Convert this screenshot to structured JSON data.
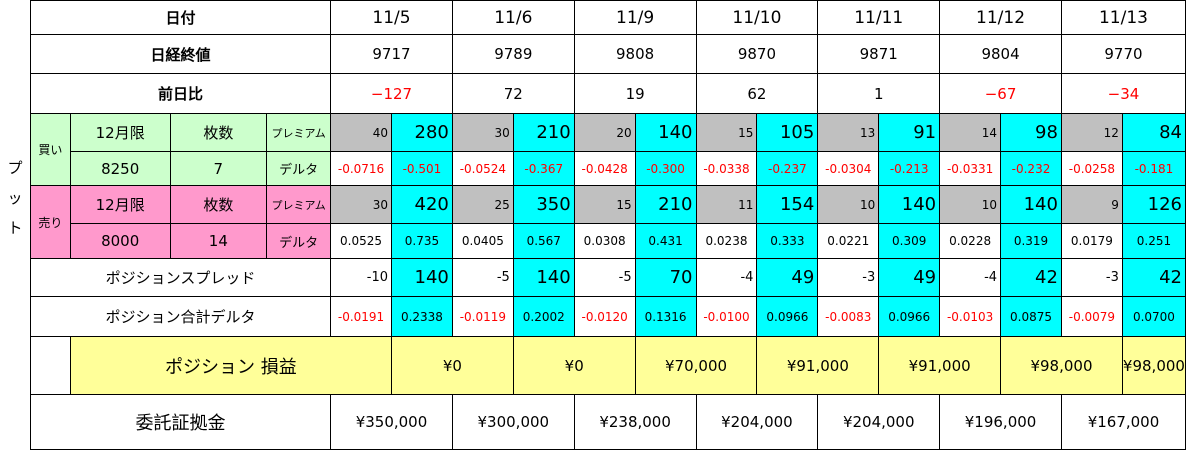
{
  "labels": {
    "date": "日付",
    "close": "日経終値",
    "change": "前日比",
    "side_put": "プット",
    "buy": "買い",
    "sell": "売り",
    "month": "12月限",
    "qty": "枚数",
    "premium": "プレミアム",
    "delta": "デルタ",
    "spread": "ポジションスプレッド",
    "total_delta": "ポジション合計デルタ",
    "pnl": "ポジション 損益",
    "margin": "委託証拠金"
  },
  "buy": {
    "strike": "8250",
    "qty": "7"
  },
  "sell": {
    "strike": "8000",
    "qty": "14"
  },
  "days": [
    {
      "date": "11/5",
      "close": "9717",
      "change": "−127",
      "change_neg": true,
      "buy_prem": "40",
      "buy_prem_total": "280",
      "buy_delta": "-0.0716",
      "buy_delta_total": "-0.501",
      "sell_prem": "30",
      "sell_prem_total": "420",
      "sell_delta": "0.0525",
      "sell_delta_total": "0.735",
      "spread": "-10",
      "spread_total": "140",
      "pos_delta": "-0.0191",
      "pos_delta_total": "0.2338",
      "pnl": "¥0",
      "margin": "¥350,000"
    },
    {
      "date": "11/6",
      "close": "9789",
      "change": "72",
      "change_neg": false,
      "buy_prem": "30",
      "buy_prem_total": "210",
      "buy_delta": "-0.0524",
      "buy_delta_total": "-0.367",
      "sell_prem": "25",
      "sell_prem_total": "350",
      "sell_delta": "0.0405",
      "sell_delta_total": "0.567",
      "spread": "-5",
      "spread_total": "140",
      "pos_delta": "-0.0119",
      "pos_delta_total": "0.2002",
      "pnl": "¥0",
      "margin": "¥300,000"
    },
    {
      "date": "11/9",
      "close": "9808",
      "change": "19",
      "change_neg": false,
      "buy_prem": "20",
      "buy_prem_total": "140",
      "buy_delta": "-0.0428",
      "buy_delta_total": "-0.300",
      "sell_prem": "15",
      "sell_prem_total": "210",
      "sell_delta": "0.0308",
      "sell_delta_total": "0.431",
      "spread": "-5",
      "spread_total": "70",
      "pos_delta": "-0.0120",
      "pos_delta_total": "0.1316",
      "pnl": "¥70,000",
      "margin": "¥238,000"
    },
    {
      "date": "11/10",
      "close": "9870",
      "change": "62",
      "change_neg": false,
      "buy_prem": "15",
      "buy_prem_total": "105",
      "buy_delta": "-0.0338",
      "buy_delta_total": "-0.237",
      "sell_prem": "11",
      "sell_prem_total": "154",
      "sell_delta": "0.0238",
      "sell_delta_total": "0.333",
      "spread": "-4",
      "spread_total": "49",
      "pos_delta": "-0.0100",
      "pos_delta_total": "0.0966",
      "pnl": "¥91,000",
      "margin": "¥204,000"
    },
    {
      "date": "11/11",
      "close": "9871",
      "change": "1",
      "change_neg": false,
      "buy_prem": "13",
      "buy_prem_total": "91",
      "buy_delta": "-0.0304",
      "buy_delta_total": "-0.213",
      "sell_prem": "10",
      "sell_prem_total": "140",
      "sell_delta": "0.0221",
      "sell_delta_total": "0.309",
      "spread": "-3",
      "spread_total": "49",
      "pos_delta": "-0.0083",
      "pos_delta_total": "0.0966",
      "pnl": "¥91,000",
      "margin": "¥204,000"
    },
    {
      "date": "11/12",
      "close": "9804",
      "change": "−67",
      "change_neg": true,
      "buy_prem": "14",
      "buy_prem_total": "98",
      "buy_delta": "-0.0331",
      "buy_delta_total": "-0.232",
      "sell_prem": "10",
      "sell_prem_total": "140",
      "sell_delta": "0.0228",
      "sell_delta_total": "0.319",
      "spread": "-4",
      "spread_total": "42",
      "pos_delta": "-0.0103",
      "pos_delta_total": "0.0875",
      "pnl": "¥98,000",
      "margin": "¥196,000"
    },
    {
      "date": "11/13",
      "close": "9770",
      "change": "−34",
      "change_neg": true,
      "buy_prem": "12",
      "buy_prem_total": "84",
      "buy_delta": "-0.0258",
      "buy_delta_total": "-0.181",
      "sell_prem": "9",
      "sell_prem_total": "126",
      "sell_delta": "0.0179",
      "sell_delta_total": "0.251",
      "spread": "-3",
      "spread_total": "42",
      "pos_delta": "-0.0079",
      "pos_delta_total": "0.0700",
      "pnl": "¥98,000",
      "margin": "¥167,000"
    }
  ],
  "colors": {
    "buy_bg": "#ccffcc",
    "sell_bg": "#ff99cc",
    "premium_bg": "#c0c0c0",
    "total_bg": "#00ffff",
    "pnl_bg": "#ffff99",
    "negative": "#ff0000"
  }
}
